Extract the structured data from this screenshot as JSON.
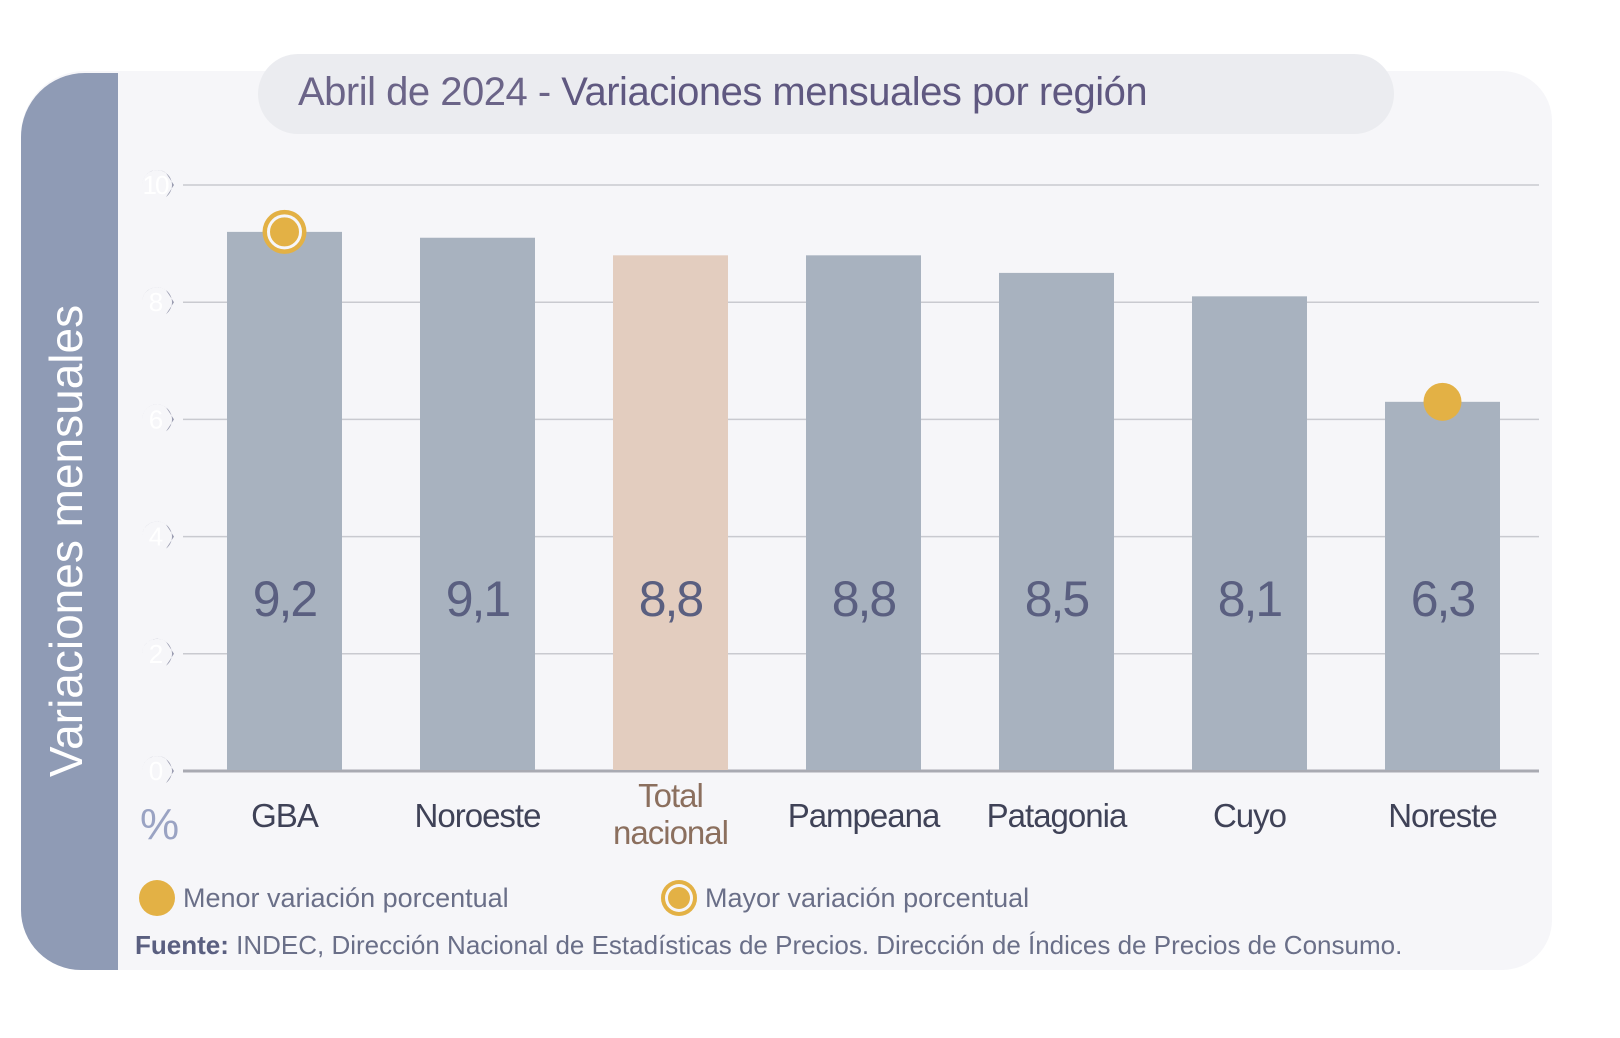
{
  "chart_data": {
    "type": "bar",
    "title_prefix": "Abril de 2024 - ",
    "title": "Variaciones mensuales por región",
    "ylabel": "Variaciones  mensuales",
    "yunit": "%",
    "ylim": [
      0,
      10
    ],
    "yticks": [
      0,
      2,
      4,
      6,
      8,
      10
    ],
    "grid": true,
    "categories": [
      "GBA",
      "Noroeste",
      "Total nacional",
      "Pampeana",
      "Patagonia",
      "Cuyo",
      "Noreste"
    ],
    "values": [
      9.2,
      9.1,
      8.8,
      8.8,
      8.5,
      8.1,
      6.3
    ],
    "value_labels": [
      "9,2",
      "9,1",
      "8,8",
      "8,8",
      "8,5",
      "8,1",
      "6,3"
    ],
    "highlight_category": "Total nacional",
    "markers": {
      "max": "GBA",
      "min": "Noreste"
    },
    "colors": {
      "bar": "#a8b2bf",
      "highlight_bar": "#e3cdbf",
      "marker": "#e3b145",
      "value_text": "#5a5f80",
      "highlight_label": "#8b6f5e"
    }
  },
  "legend": {
    "min_label": "Menor variación porcentual",
    "max_label": "Mayor variación porcentual"
  },
  "source": {
    "label": "Fuente:",
    "text": " INDEC, Dirección Nacional de Estadísticas de Precios. Dirección de Índices de Precios de Consumo."
  }
}
